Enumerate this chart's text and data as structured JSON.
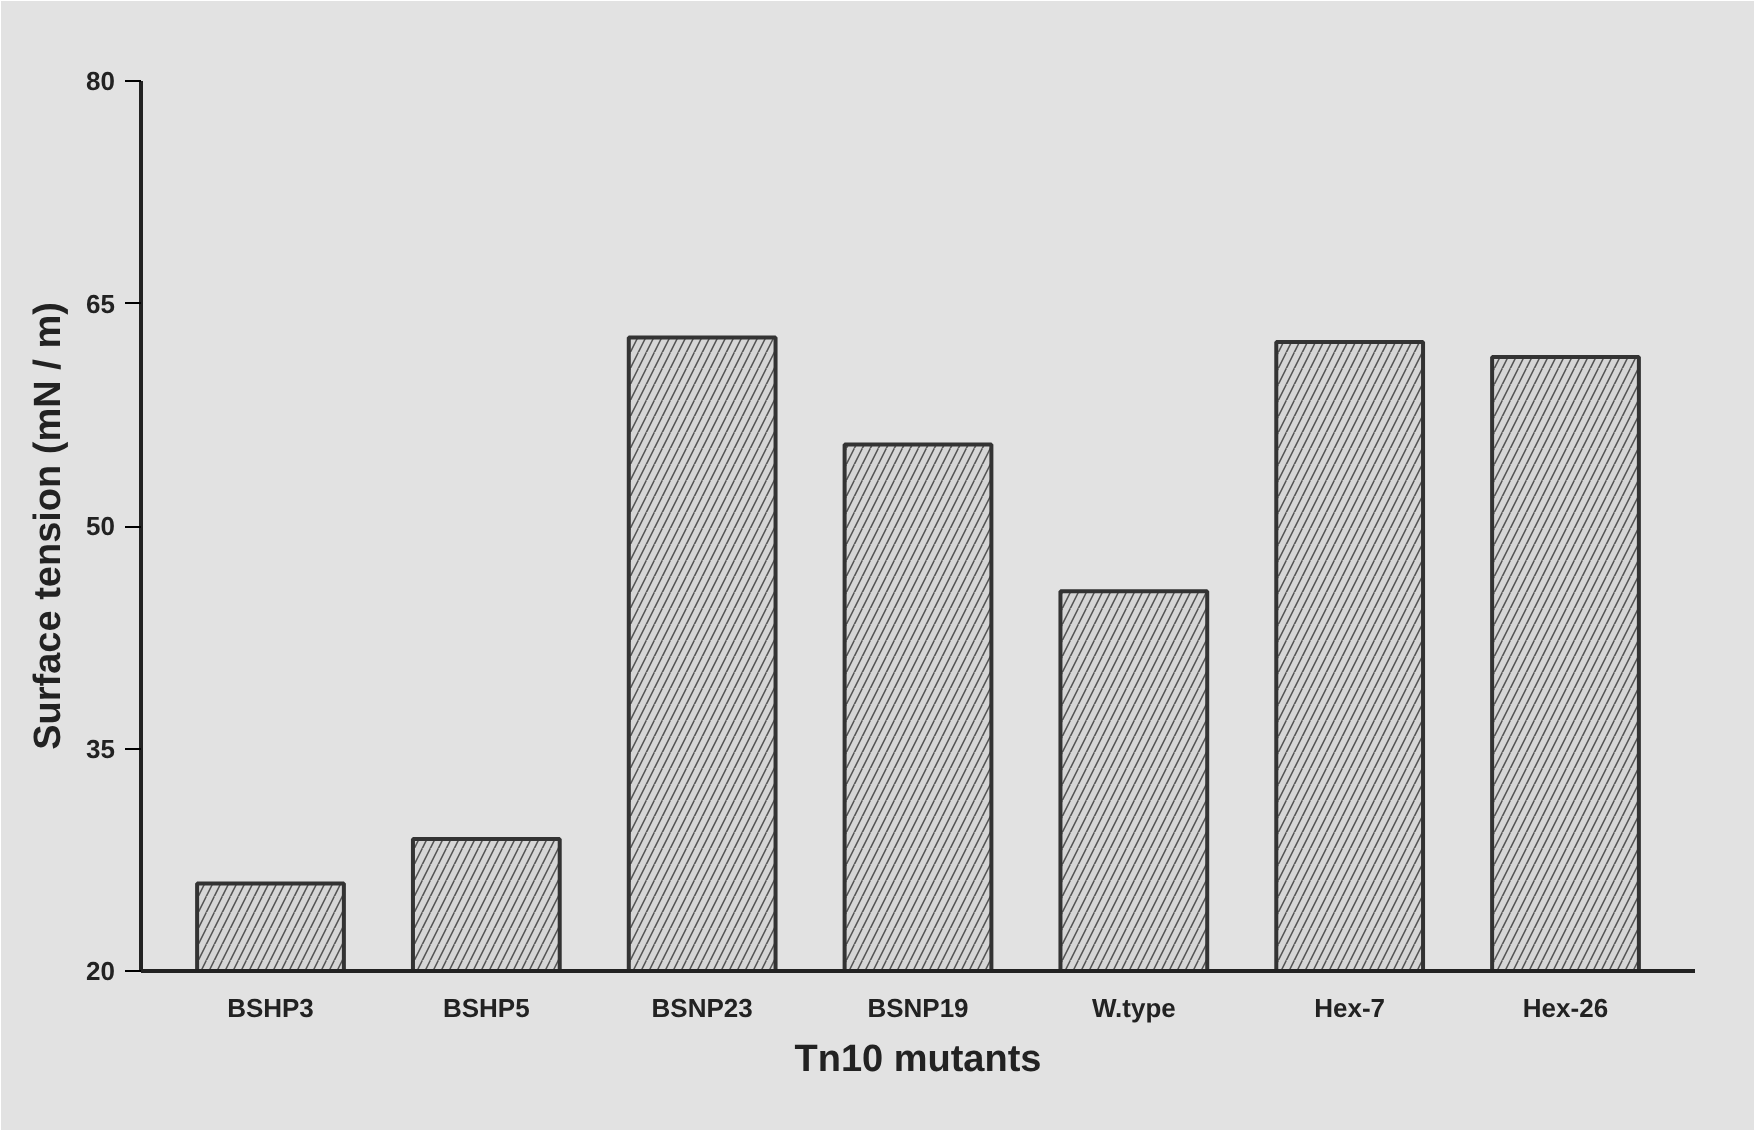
{
  "chart_data": {
    "type": "bar",
    "xlabel": "Tn10 mutants",
    "ylabel": "Surface tension (mN / m)",
    "categories": [
      "BSHP3",
      "BSHP5",
      "BSNP23",
      "BSNP19",
      "W.type",
      "Hex-7",
      "Hex-26"
    ],
    "values": [
      25.9,
      28.9,
      62.7,
      55.5,
      45.6,
      62.4,
      61.4
    ],
    "color": "#d6d6d6",
    "ylim": [
      20,
      80
    ],
    "yticks": [
      20,
      35,
      50,
      65,
      80
    ]
  }
}
